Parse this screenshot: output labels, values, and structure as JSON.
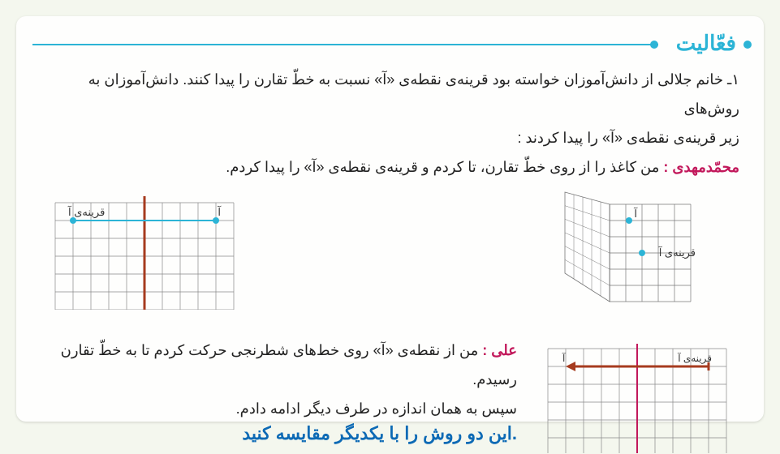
{
  "title": "فعّالیت",
  "p1": "۱ـ خانم جلالی از دانش‌آموزان خواسته بود قرینه‌ی نقطه‌ی «آ» نسبت به خطّ تقارن را پیدا کنند. دانش‌آموزان به روش‌های",
  "p1b": "زیر قرینه‌ی نقطه‌ی «آ» را پیدا کردند :",
  "mm_label": "محمّدمهدی : ",
  "mm_text": "من کاغذ را از روی خطّ تقارن، تا کردم و قرینه‌ی نقطه‌ی «آ» را پیدا کردم.",
  "ali_label": "علی : ",
  "ali_text1": "من از نقطه‌ی «آ» روی خط‌های شطرنجی حرکت کردم تا به خطّ تقارن رسیدم.",
  "ali_text2": "سپس به همان اندازه در طرف دیگر ادامه دادم.",
  "question": ".این دو روش را با یکدیگر مقایسه کنید",
  "fig_right": {
    "point_a": "آ",
    "mirror_a": "قرینه‌ی آ",
    "grid_cols": 10,
    "grid_rows": 6,
    "cell": 22,
    "axis_color": "#a63b1f",
    "line_color": "#2cb4d6",
    "point_color": "#2cb4d6",
    "text_color": "#333"
  },
  "fig_left_fold": {
    "point_a": "آ",
    "mirror_a": "قرینه‌ی آ",
    "grid_color": "#777",
    "fold_color": "#444",
    "point_color": "#2cb4d6",
    "text_color": "#333"
  },
  "fig_bottom": {
    "point_a": "آ",
    "mirror_a": "قرینه‌ی آ",
    "grid_cols": 10,
    "grid_rows": 6,
    "cell": 22,
    "axis_color": "#c2185b",
    "arrow_color": "#a63b1f",
    "text_color": "#333"
  }
}
